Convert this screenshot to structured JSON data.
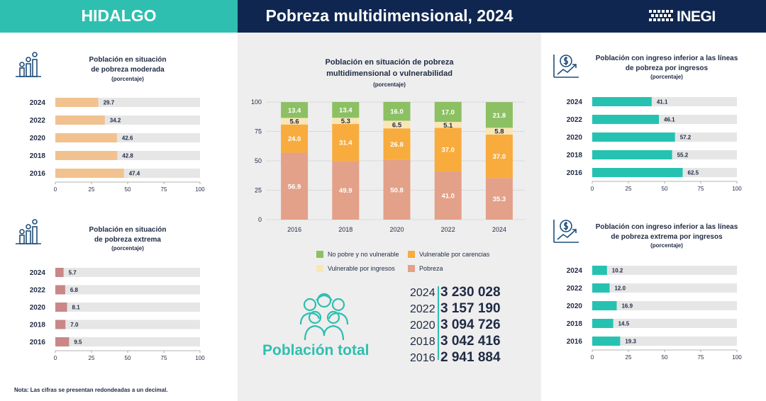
{
  "header": {
    "state": "HIDALGO",
    "title": "Pobreza multidimensional, 2024",
    "logo_text": "INEGI"
  },
  "left_panels": [
    {
      "title_line1": "Población en situación",
      "title_line2": "de pobreza moderada",
      "unit": "(porcentaje)",
      "color": "#f1c28f",
      "chart_data": {
        "type": "bar",
        "orientation": "horizontal",
        "categories": [
          "2024",
          "2022",
          "2020",
          "2018",
          "2016"
        ],
        "values": [
          29.7,
          34.2,
          42.6,
          42.8,
          47.4
        ],
        "xlim": [
          0,
          100
        ],
        "ticks": [
          "0",
          "25",
          "50",
          "75",
          "100"
        ]
      }
    },
    {
      "title_line1": "Población en situación",
      "title_line2": "de pobreza extrema",
      "unit": "(porcentaje)",
      "color": "#c98787",
      "chart_data": {
        "type": "bar",
        "orientation": "horizontal",
        "categories": [
          "2024",
          "2022",
          "2020",
          "2018",
          "2016"
        ],
        "values": [
          5.7,
          6.8,
          8.1,
          7.0,
          9.5
        ],
        "xlim": [
          0,
          100
        ],
        "ticks": [
          "0",
          "25",
          "50",
          "75",
          "100"
        ]
      }
    }
  ],
  "right_panels": [
    {
      "title_line1": "Población con ingreso inferior a las líneas",
      "title_line2": "de pobreza por ingresos",
      "unit": "(porcentaje)",
      "color": "#26c2b1",
      "chart_data": {
        "type": "bar",
        "orientation": "horizontal",
        "categories": [
          "2024",
          "2022",
          "2020",
          "2018",
          "2016"
        ],
        "values": [
          41.1,
          46.1,
          57.2,
          55.2,
          62.5
        ],
        "xlim": [
          0,
          100
        ],
        "ticks": [
          "0",
          "25",
          "50",
          "75",
          "100"
        ]
      }
    },
    {
      "title_line1": "Población con ingreso inferior a las líneas",
      "title_line2": "de pobreza extrema por ingresos",
      "unit": "(porcentaje)",
      "color": "#26c2b1",
      "chart_data": {
        "type": "bar",
        "orientation": "horizontal",
        "categories": [
          "2024",
          "2022",
          "2020",
          "2018",
          "2016"
        ],
        "values": [
          10.2,
          12.0,
          16.9,
          14.5,
          19.3
        ],
        "xlim": [
          0,
          100
        ],
        "ticks": [
          "0",
          "25",
          "50",
          "75",
          "100"
        ]
      }
    }
  ],
  "center": {
    "title_line1": "Población en situación de pobreza",
    "title_line2": "multidimensional o vulnerabilidad",
    "unit": "(porcentaje)",
    "chart_data": {
      "type": "bar",
      "stacked": true,
      "categories": [
        "2016",
        "2018",
        "2020",
        "2022",
        "2024"
      ],
      "ylim": [
        0,
        100
      ],
      "yticks": [
        "0",
        "25",
        "50",
        "75",
        "100"
      ],
      "series": [
        {
          "name": "Pobreza",
          "color": "#e3a189",
          "values": [
            56.9,
            49.9,
            50.8,
            41.0,
            35.3
          ]
        },
        {
          "name": "Vulnerable por carencias",
          "color": "#f8ac3d",
          "values": [
            24.0,
            31.4,
            26.8,
            37.0,
            37.0
          ]
        },
        {
          "name": "Vulnerable por ingresos",
          "color": "#f9e6b6",
          "values": [
            5.6,
            5.3,
            6.5,
            5.1,
            5.8
          ]
        },
        {
          "name": "No pobre y no vulnerable",
          "color": "#8cc063",
          "values": [
            13.4,
            13.4,
            16.0,
            17.0,
            21.8
          ]
        }
      ]
    },
    "legend": [
      {
        "name": "No pobre y no vulnerable",
        "color": "#8cc063"
      },
      {
        "name": "Vulnerable por carencias",
        "color": "#f8ac3d"
      },
      {
        "name": "Vulnerable por ingresos",
        "color": "#f9e6b6"
      },
      {
        "name": "Pobreza",
        "color": "#e3a189"
      }
    ],
    "population_label": "Población total",
    "population": [
      {
        "year": "2024",
        "value": "3 230 028"
      },
      {
        "year": "2022",
        "value": "3 157 190"
      },
      {
        "year": "2020",
        "value": "3 094 726"
      },
      {
        "year": "2018",
        "value": "3 042 416"
      },
      {
        "year": "2016",
        "value": "2 941 884"
      }
    ]
  },
  "note": "Nota: Las cifras se presentan redondeadas a un decimal.",
  "icons": [
    "people-bars-icon",
    "money-chart-icon",
    "population-group-icon",
    "inegi-logo-icon"
  ],
  "colors": {
    "teal": "#2fbfb0",
    "navy": "#0f2750",
    "track": "#e6e6e6"
  }
}
